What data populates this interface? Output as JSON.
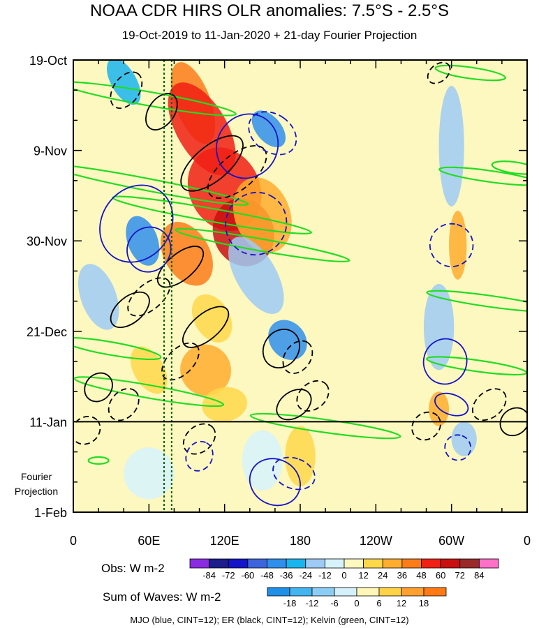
{
  "chart_data": {
    "type": "heatmap",
    "title": "NOAA CDR HIRS OLR anomalies: 7.5°S - 2.5°S",
    "subtitle": "19-Oct-2019 to 11-Jan-2020 + 21-day Fourier Projection",
    "xlabel": "",
    "ylabel": "",
    "x_ticks": [
      {
        "label": "0",
        "lon": 0
      },
      {
        "label": "60E",
        "lon": 60
      },
      {
        "label": "120E",
        "lon": 120
      },
      {
        "label": "180",
        "lon": 180
      },
      {
        "label": "120W",
        "lon": 240
      },
      {
        "label": "60W",
        "lon": 300
      },
      {
        "label": "0",
        "lon": 360
      }
    ],
    "y_ticks": [
      {
        "label": "19-Oct",
        "day": 0
      },
      {
        "label": "9-Nov",
        "day": 21
      },
      {
        "label": "30-Nov",
        "day": 42
      },
      {
        "label": "21-Dec",
        "day": 63
      },
      {
        "label": "11-Jan",
        "day": 84
      },
      {
        "label": "1-Feb",
        "day": 105
      }
    ],
    "xlim": [
      0,
      360
    ],
    "ylim": [
      0,
      105
    ],
    "observation_end_day": 84,
    "projection_label_line1": "Fourier",
    "projection_label_line2": "Projection",
    "obs_colorbar": {
      "label": "Obs: W m-2",
      "levels": [
        "-84",
        "-72",
        "-60",
        "-48",
        "-36",
        "-24",
        "-12",
        "0",
        "12",
        "24",
        "36",
        "48",
        "60",
        "72",
        "84"
      ],
      "colors": [
        "#8a2be2",
        "#1c1c8c",
        "#1414c8",
        "#3c64dc",
        "#2f8fec",
        "#19b5ef",
        "#9ecbf5",
        "#d6f3fb",
        "#fdf7c0",
        "#ffd84a",
        "#ffad2e",
        "#fb7d1a",
        "#f02014",
        "#c81010",
        "#9a2a2a",
        "#ff70c8"
      ]
    },
    "waves_colorbar": {
      "label": "Sum of Waves: W m-2",
      "levels": [
        "-18",
        "-12",
        "-6",
        "0",
        "6",
        "12",
        "18"
      ],
      "colors": [
        "#1f8fe8",
        "#42b4f0",
        "#8ccdf5",
        "#d4f0fa",
        "#fff6b8",
        "#ffd24a",
        "#ffa030",
        "#ff7a14"
      ]
    },
    "footnote": "MJO (blue, CINT=12); ER (black, CINT=12); Kelvin (green, CINT=12)",
    "mjo_color": "#1414c8",
    "er_color": "#000000",
    "kelvin_color": "#22dd22",
    "ref_lines_lon": [
      72,
      78
    ],
    "ref_line_color": "#006400",
    "anomaly_blobs": [
      {
        "lon": 95,
        "day": 10,
        "rx": 14,
        "ry": 10,
        "cls": 4,
        "rot": -20
      },
      {
        "lon": 102,
        "day": 16,
        "rx": 20,
        "ry": 12,
        "cls": 5,
        "rot": -30
      },
      {
        "lon": 120,
        "day": 30,
        "rx": 28,
        "ry": 10,
        "cls": 5,
        "rot": -25
      },
      {
        "lon": 135,
        "day": 40,
        "rx": 24,
        "ry": 8,
        "cls": 6,
        "rot": -20
      },
      {
        "lon": 90,
        "day": 45,
        "rx": 18,
        "ry": 8,
        "cls": 4,
        "rot": -30
      },
      {
        "lon": 150,
        "day": 36,
        "rx": 22,
        "ry": 9,
        "cls": 3,
        "rot": -20
      },
      {
        "lon": 110,
        "day": 60,
        "rx": 14,
        "ry": 6,
        "cls": 2,
        "rot": -30
      },
      {
        "lon": 105,
        "day": 72,
        "rx": 20,
        "ry": 6,
        "cls": 3,
        "rot": -35
      },
      {
        "lon": 60,
        "day": 72,
        "rx": 12,
        "ry": 6,
        "cls": 2,
        "rot": -30
      },
      {
        "lon": 120,
        "day": 80,
        "rx": 18,
        "ry": 4,
        "cls": 2,
        "rot": -10
      },
      {
        "lon": 180,
        "day": 92,
        "rx": 12,
        "ry": 7,
        "cls": 2,
        "rot": 0
      },
      {
        "lon": 305,
        "day": 43,
        "rx": 7,
        "ry": 8,
        "cls": 3,
        "rot": 0
      },
      {
        "lon": 290,
        "day": 81,
        "rx": 8,
        "ry": 4,
        "cls": 3,
        "rot": 0
      },
      {
        "lon": 305,
        "day": 95,
        "rx": 6,
        "ry": 5,
        "cls": 1,
        "rot": 0
      },
      {
        "lon": 40,
        "day": 5,
        "rx": 10,
        "ry": 6,
        "cls": -3,
        "rot": -30
      },
      {
        "lon": 55,
        "day": 42,
        "rx": 12,
        "ry": 6,
        "cls": -4,
        "rot": -20
      },
      {
        "lon": 155,
        "day": 16,
        "rx": 10,
        "ry": 5,
        "cls": -4,
        "rot": -40
      },
      {
        "lon": 170,
        "day": 65,
        "rx": 14,
        "ry": 5,
        "cls": -4,
        "rot": -40
      },
      {
        "lon": 20,
        "day": 55,
        "rx": 14,
        "ry": 8,
        "cls": -2,
        "rot": -20
      },
      {
        "lon": 145,
        "day": 50,
        "rx": 16,
        "ry": 10,
        "cls": -2,
        "rot": -30
      },
      {
        "lon": 150,
        "day": 93,
        "rx": 16,
        "ry": 7,
        "cls": -1,
        "rot": 0
      },
      {
        "lon": 290,
        "day": 62,
        "rx": 12,
        "ry": 10,
        "cls": -2,
        "rot": 0
      },
      {
        "lon": 300,
        "day": 20,
        "rx": 10,
        "ry": 14,
        "cls": -2,
        "rot": 0
      },
      {
        "lon": 310,
        "day": 88,
        "rx": 10,
        "ry": 4,
        "cls": -2,
        "rot": 0
      },
      {
        "lon": 230,
        "day": 15,
        "rx": 16,
        "ry": 10,
        "cls": 1,
        "rot": 0
      },
      {
        "lon": 200,
        "day": 50,
        "rx": 12,
        "ry": 8,
        "cls": 1,
        "rot": 0
      },
      {
        "lon": 215,
        "day": 75,
        "rx": 12,
        "ry": 6,
        "cls": 1,
        "rot": 0
      },
      {
        "lon": 25,
        "day": 80,
        "rx": 15,
        "ry": 4,
        "cls": 1,
        "rot": -20
      },
      {
        "lon": 60,
        "day": 96,
        "rx": 20,
        "ry": 6,
        "cls": -1,
        "rot": 0
      }
    ],
    "mjo_contours": [
      {
        "lon": 138,
        "day": 20,
        "rx": 26,
        "ry": 7,
        "rot": -60,
        "dash": false
      },
      {
        "lon": 158,
        "day": 17,
        "rx": 15,
        "ry": 6,
        "rot": -55,
        "dash": true
      },
      {
        "lon": 145,
        "day": 38,
        "rx": 25,
        "ry": 7,
        "rot": -62,
        "dash": true
      },
      {
        "lon": 50,
        "day": 38,
        "rx": 32,
        "ry": 8,
        "rot": -55,
        "dash": false
      },
      {
        "lon": 60,
        "day": 44,
        "rx": 18,
        "ry": 5,
        "rot": -60,
        "dash": false
      },
      {
        "lon": 300,
        "day": 43,
        "rx": 17,
        "ry": 5,
        "rot": -75,
        "dash": true
      },
      {
        "lon": 295,
        "day": 70,
        "rx": 18,
        "ry": 5,
        "rot": -75,
        "dash": false
      },
      {
        "lon": 300,
        "day": 80,
        "rx": 8,
        "ry": 4,
        "rot": -70,
        "dash": false
      },
      {
        "lon": 175,
        "day": 96,
        "rx": 12,
        "ry": 5,
        "rot": -70,
        "dash": true
      },
      {
        "lon": 160,
        "day": 98,
        "rx": 18,
        "ry": 6,
        "rot": -62,
        "dash": false
      },
      {
        "lon": 100,
        "day": 92,
        "rx": 12,
        "ry": 3,
        "rot": -62,
        "dash": true
      },
      {
        "lon": 305,
        "day": 90,
        "rx": 10,
        "ry": 3,
        "rot": -70,
        "dash": true
      }
    ],
    "er_contours": [
      {
        "lon": 42,
        "day": 7,
        "rx": 16,
        "ry": 3,
        "rot": -55,
        "dash": true
      },
      {
        "lon": 70,
        "day": 12,
        "rx": 16,
        "ry": 3,
        "rot": -55,
        "dash": false
      },
      {
        "lon": 110,
        "day": 24,
        "rx": 30,
        "ry": 4,
        "rot": -40,
        "dash": false
      },
      {
        "lon": 130,
        "day": 26,
        "rx": 28,
        "ry": 4,
        "rot": -40,
        "dash": true
      },
      {
        "lon": 85,
        "day": 48,
        "rx": 22,
        "ry": 3,
        "rot": -40,
        "dash": false
      },
      {
        "lon": 60,
        "day": 55,
        "rx": 20,
        "ry": 3,
        "rot": -40,
        "dash": true
      },
      {
        "lon": 45,
        "day": 58,
        "rx": 18,
        "ry": 3,
        "rot": -40,
        "dash": false
      },
      {
        "lon": 105,
        "day": 62,
        "rx": 22,
        "ry": 3,
        "rot": -40,
        "dash": false
      },
      {
        "lon": 85,
        "day": 70,
        "rx": 18,
        "ry": 3,
        "rot": -45,
        "dash": true
      },
      {
        "lon": 165,
        "day": 67,
        "rx": 16,
        "ry": 4,
        "rot": -55,
        "dash": false
      },
      {
        "lon": 178,
        "day": 69,
        "rx": 14,
        "ry": 3,
        "rot": -55,
        "dash": true
      },
      {
        "lon": 20,
        "day": 76,
        "rx": 12,
        "ry": 3,
        "rot": -50,
        "dash": false
      },
      {
        "lon": 40,
        "day": 80,
        "rx": 14,
        "ry": 3,
        "rot": -50,
        "dash": true
      },
      {
        "lon": 190,
        "day": 78,
        "rx": 14,
        "ry": 3,
        "rot": -40,
        "dash": true
      },
      {
        "lon": 175,
        "day": 80,
        "rx": 15,
        "ry": 3,
        "rot": -35,
        "dash": false
      },
      {
        "lon": 280,
        "day": 85,
        "rx": 12,
        "ry": 3,
        "rot": -40,
        "dash": true
      },
      {
        "lon": 330,
        "day": 80,
        "rx": 15,
        "ry": 3,
        "rot": -40,
        "dash": true
      },
      {
        "lon": 350,
        "day": 84,
        "rx": 12,
        "ry": 3,
        "rot": -40,
        "dash": false
      },
      {
        "lon": 100,
        "day": 88,
        "rx": 14,
        "ry": 3,
        "rot": -40,
        "dash": true
      },
      {
        "lon": 290,
        "day": 3,
        "rx": 10,
        "ry": 2,
        "rot": -40,
        "dash": true
      },
      {
        "lon": 10,
        "day": 86,
        "rx": 12,
        "ry": 3,
        "rot": -40,
        "dash": true
      }
    ],
    "kelvin_contours": [
      {
        "lon": 60,
        "day": 9,
        "rx": 70,
        "ry": 1.6,
        "rot": 10
      },
      {
        "lon": 60,
        "day": 29,
        "rx": 80,
        "ry": 1.4,
        "rot": 11
      },
      {
        "lon": 110,
        "day": 36,
        "rx": 80,
        "ry": 1.5,
        "rot": 10
      },
      {
        "lon": 150,
        "day": 43,
        "rx": 70,
        "ry": 1.4,
        "rot": 10
      },
      {
        "lon": 30,
        "day": 67,
        "rx": 40,
        "ry": 1.5,
        "rot": 10
      },
      {
        "lon": 60,
        "day": 77,
        "rx": 60,
        "ry": 1.5,
        "rot": 10
      },
      {
        "lon": 200,
        "day": 85,
        "rx": 60,
        "ry": 1.5,
        "rot": 8
      },
      {
        "lon": 330,
        "day": 27,
        "rx": 40,
        "ry": 1.3,
        "rot": 8
      },
      {
        "lon": 330,
        "day": 56,
        "rx": 50,
        "ry": 1.3,
        "rot": 8
      },
      {
        "lon": 320,
        "day": 71,
        "rx": 40,
        "ry": 1.3,
        "rot": 8
      },
      {
        "lon": 315,
        "day": 3,
        "rx": 28,
        "ry": 1.3,
        "rot": 8
      },
      {
        "lon": 350,
        "day": 25,
        "rx": 18,
        "ry": 1.3,
        "rot": 8
      },
      {
        "lon": 20,
        "day": 93,
        "rx": 8,
        "ry": 0.8,
        "rot": 0
      }
    ]
  }
}
